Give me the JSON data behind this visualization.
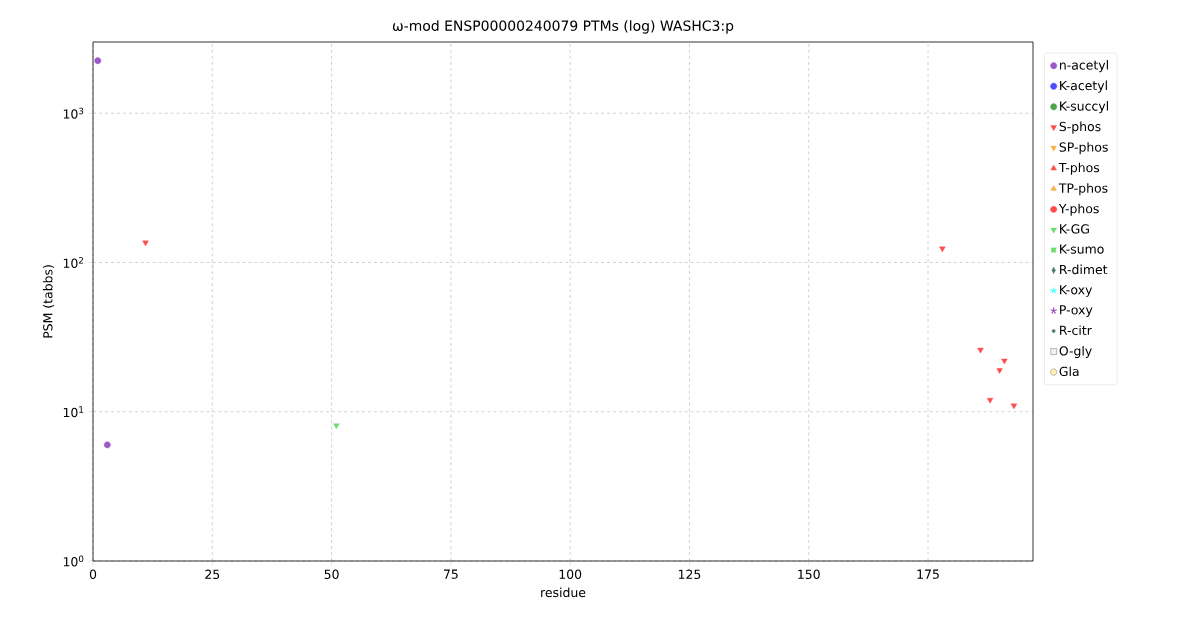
{
  "chart_data": {
    "type": "scatter",
    "title": "ω-mod ENSP00000240079 PTMs (log) WASHC3:p",
    "xlabel": "residue",
    "ylabel": "PSM (tabbs)",
    "xlim": [
      0,
      197
    ],
    "ylim": [
      1,
      3000
    ],
    "xticks": [
      0,
      25,
      50,
      75,
      100,
      125,
      150,
      175
    ],
    "yticks": [
      {
        "value": 1,
        "label": "10$^{0}$"
      },
      {
        "value": 10,
        "label": "10$^{1}$"
      },
      {
        "value": 100,
        "label": "10$^{2}$"
      },
      {
        "value": 1000,
        "label": "10$^{3}$"
      }
    ],
    "log": "y",
    "grid": true,
    "legend": "right",
    "series": [
      {
        "name": "n-acetyl",
        "color": "#9b59c8",
        "marker": "circle",
        "x": [
          1,
          3
        ],
        "values": [
          2250,
          6
        ]
      },
      {
        "name": "K-acetyl",
        "color": "#4d4dff",
        "marker": "circle"
      },
      {
        "name": "K-succyl",
        "color": "#4ca64c",
        "marker": "circle"
      },
      {
        "name": "S-phos",
        "color": "#ff4d4d",
        "marker": "triangle_down",
        "x": [
          11,
          178,
          186,
          191,
          190,
          188,
          193
        ],
        "values": [
          136,
          124,
          26,
          22,
          19,
          12,
          11
        ]
      },
      {
        "name": "SP-phos",
        "color": "#f5b449",
        "marker": "triangle_down"
      },
      {
        "name": "T-phos",
        "color": "#ff4d4d",
        "marker": "triangle"
      },
      {
        "name": "TP-phos",
        "color": "#f5b449",
        "marker": "triangle"
      },
      {
        "name": "Y-phos",
        "color": "#ff4d4d",
        "marker": "circle"
      },
      {
        "name": "K-GG",
        "color": "#6edc6e",
        "marker": "triangle_down",
        "x": [
          51
        ],
        "values": [
          8.1
        ]
      },
      {
        "name": "K-sumo",
        "color": "#6edc6e",
        "marker": "cross"
      },
      {
        "name": "R-dimet",
        "color": "#4a7a63",
        "marker": "diamond"
      },
      {
        "name": "K-oxy",
        "color": "#4dffff",
        "marker": "star"
      },
      {
        "name": "P-oxy",
        "color": "#9b4dbd",
        "marker": "star"
      },
      {
        "name": "R-citr",
        "color": "#4a7a63",
        "marker": "dot"
      },
      {
        "name": "O-gly",
        "color": "#f2f2f2",
        "marker": "square"
      },
      {
        "name": "Gla",
        "color": "#fff0b0",
        "marker": "circle"
      }
    ]
  }
}
